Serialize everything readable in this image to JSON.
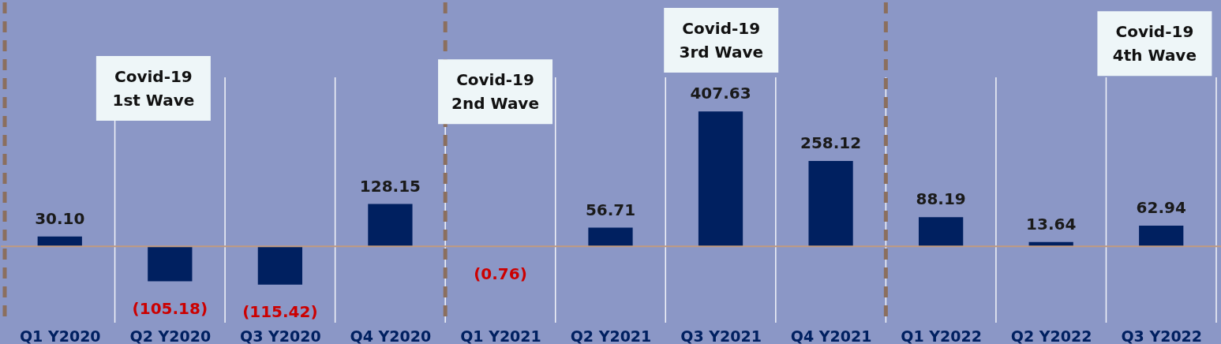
{
  "chart_data": {
    "type": "bar",
    "categories": [
      "Q1 Y2020",
      "Q2 Y2020",
      "Q3 Y2020",
      "Q4 Y2020",
      "Q1 Y2021",
      "Q2 Y2021",
      "Q3 Y2021",
      "Q4 Y2021",
      "Q1 Y2022",
      "Q2 Y2022",
      "Q3 Y2022"
    ],
    "values": [
      30.1,
      -105.18,
      -115.42,
      128.15,
      -0.76,
      56.71,
      407.63,
      258.12,
      88.19,
      13.64,
      62.94
    ],
    "value_labels": [
      "30.10",
      "(105.18)",
      "(115.42)",
      "128.15",
      "(0.76)",
      "56.71",
      "407.63",
      "258.12",
      "88.19",
      "13.64",
      "62.94"
    ],
    "color": "#002060",
    "ylim": [
      -235,
      737
    ],
    "tick_labels": "x",
    "grid": "x",
    "annotations": [
      "Covid-19\n1st Wave",
      "Covid-19\n2nd Wave",
      "Covid-19\n3rd Wave",
      "Covid-19\n4th Wave"
    ],
    "ref_lines": [
      {
        "axis": "y",
        "value": 0,
        "color": "#c09a80"
      }
    ]
  }
}
